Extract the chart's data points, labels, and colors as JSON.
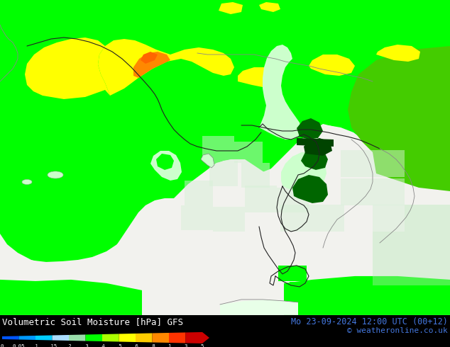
{
  "title_left": "Volumetric Soil Moisture [hPa] GFS",
  "title_right": "Mo 23-09-2024 12:00 UTC (00+12)",
  "copyright": "© weatheronline.co.uk",
  "colorbar_tick_labels": [
    "0",
    "0.05",
    ".1",
    ".15",
    ".2",
    ".3",
    ".4",
    ".5",
    ".6",
    ".8",
    "1",
    "3",
    "5"
  ],
  "colorbar_colors": [
    "#0055ff",
    "#0099ff",
    "#00ccff",
    "#aaddff",
    "#99ddaa",
    "#00ff00",
    "#aaff00",
    "#ffff00",
    "#ffcc00",
    "#ff8800",
    "#ff3300",
    "#cc0000"
  ],
  "sea_color": "#f0f0f0",
  "land_bg_color": "#00ff00",
  "fig_width": 6.34,
  "fig_height": 4.9,
  "dpi": 100,
  "bottom_bar_color": "#000000",
  "text_color_left": "#ffffff",
  "text_color_right": "#3366cc",
  "map_colors": {
    "bright_green": "#00ff00",
    "medium_green": "#44cc00",
    "light_green": "#aaffaa",
    "pale_green": "#ccffcc",
    "very_pale_green": "#e8ffe8",
    "dark_green": "#006600",
    "darker_green": "#004400",
    "yellow": "#ffff00",
    "yellow_green": "#ccff00",
    "orange": "#ff8800",
    "orange_red": "#ff4400",
    "sea": "#f2f2ee"
  }
}
